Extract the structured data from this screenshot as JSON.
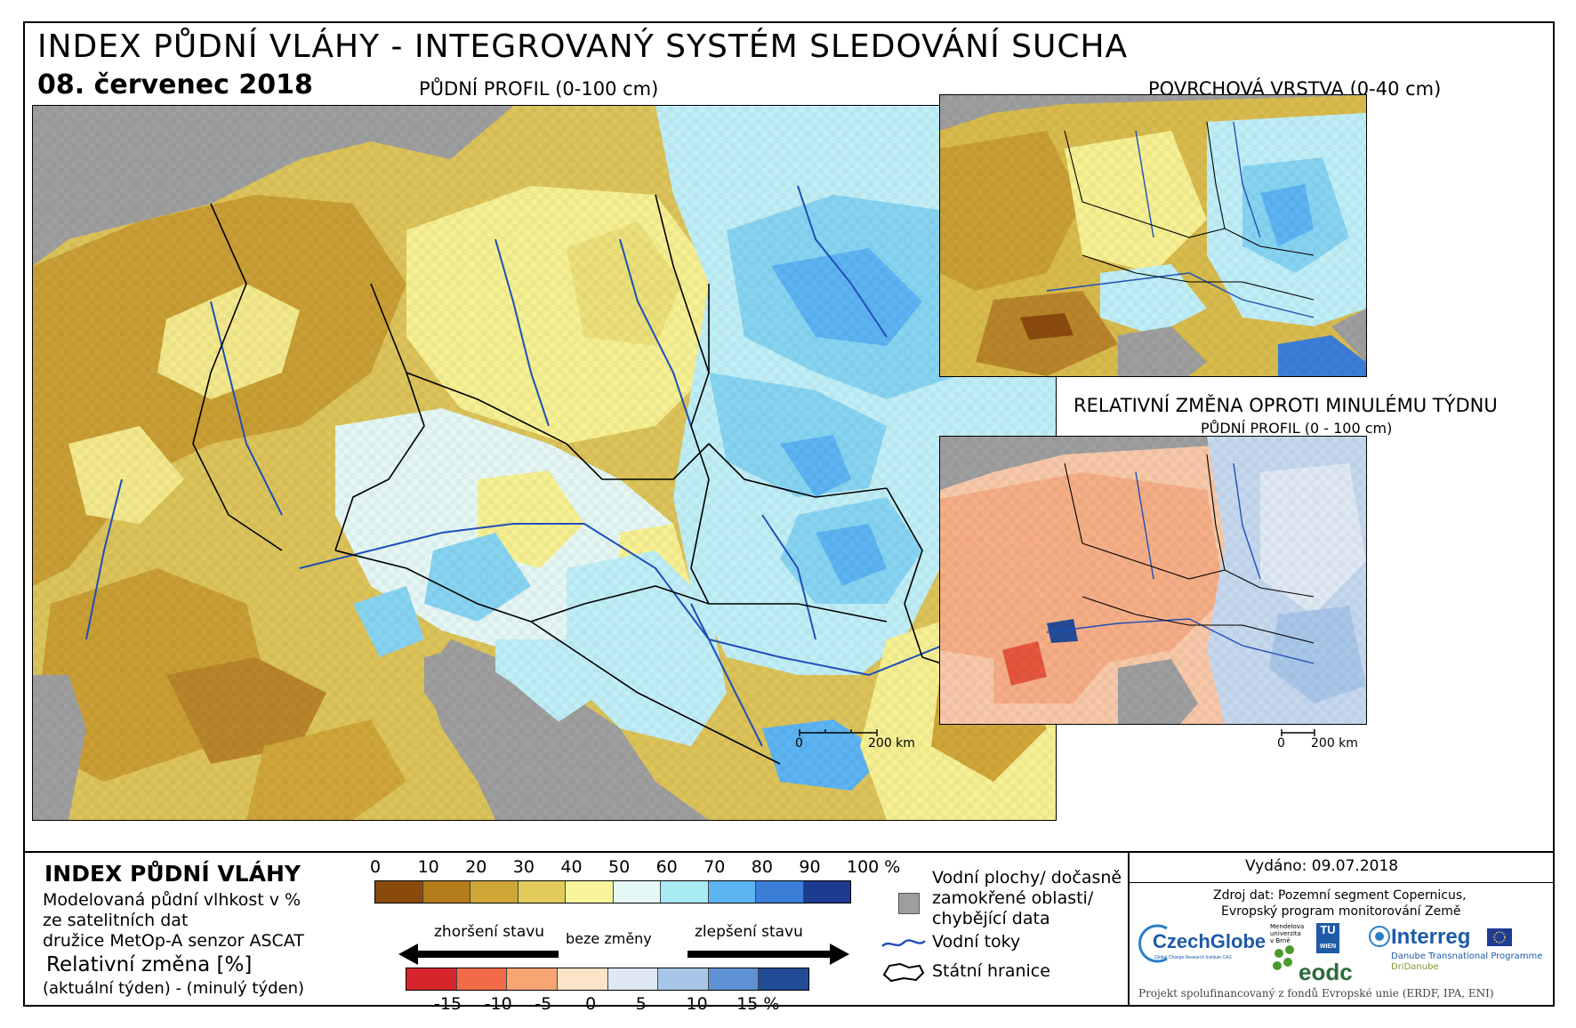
{
  "header": {
    "title": "INDEX PŮDNÍ VLÁHY - INTEGROVANÝ SYSTÉM SLEDOVÁNÍ SUCHA",
    "date": "08. červenec 2018"
  },
  "maps": {
    "main_label": "PŮDNÍ PROFIL (0-100 cm)",
    "surface_label": "POVRCHOVÁ VRSTVA (0-40 cm)",
    "change_title": "RELATIVNÍ ZMĚNA OPROTI MINULÉMU TÝDNU",
    "change_subtitle": "PŮDNÍ PROFIL (0 - 100 cm)",
    "scale_main": {
      "zero": "0",
      "end": "200 km"
    },
    "scale_small": {
      "zero": "0",
      "end": "200 km"
    }
  },
  "legend": {
    "title": "INDEX PŮDNÍ VLÁHY",
    "desc1": "Modelovaná půdní vlhkost v %",
    "desc2": "ze satelitních dat",
    "desc3": "družice MetOp-A senzor ASCAT",
    "rel_title": "Relativní změna [%]",
    "rel_desc": "(aktuální týden) - (minulý týden)",
    "index_ticks": [
      "0",
      "10",
      "20",
      "30",
      "40",
      "50",
      "60",
      "70",
      "80",
      "90",
      "100 %"
    ],
    "index_colors": [
      "#8a4a0c",
      "#b47c1a",
      "#cfa638",
      "#e1cc5a",
      "#f8f49a",
      "#e6f8f6",
      "#a9ebf5",
      "#5cb4f2",
      "#3b7ed8",
      "#1d3b8f"
    ],
    "worse_label": "zhoršení stavu",
    "nochange_label": "beze změny",
    "better_label": "zlepšení stavu",
    "change_ticks": [
      "-15",
      "-10",
      "-5",
      "0",
      "5",
      "10",
      "15 %"
    ],
    "change_colors": [
      "#d7262b",
      "#f26a47",
      "#f8a574",
      "#fde3c8",
      "#dfe9f4",
      "#a8c7e8",
      "#5f92d4",
      "#234c97"
    ],
    "water_label_1": "Vodní plochy/ dočasně",
    "water_label_2": "zamokřené oblasti/",
    "water_label_3": "chybějící data",
    "rivers_label": "Vodní toky",
    "borders_label": "Státní hranice",
    "issued": "Vydáno: 09.07.2018",
    "source1": "Zdroj dat: Pozemní segment Copernicus,",
    "source2": "Evropský program monitorování Země",
    "czechglobe": "CzechGlobe",
    "czechglobe_sub": "Global Change Research Institute CAS",
    "mendel": "Mendelova univerzita v Brně",
    "tuwien_1": "TU",
    "tuwien_2": "WIEN",
    "eodc": "eodc",
    "interreg": "Interreg",
    "danube_1": "Danube Transnational Programme",
    "danube_2": "DriDanube",
    "funding": "Projekt spolufinancovaný z fondů Evropské unie (ERDF, IPA, ENI)"
  }
}
